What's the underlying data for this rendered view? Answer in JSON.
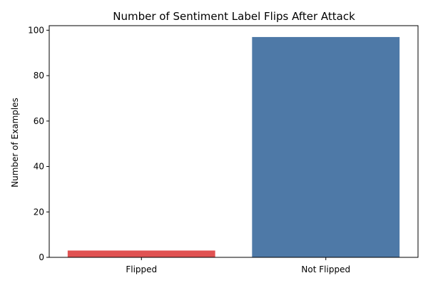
{
  "chart_data": {
    "type": "bar",
    "title": "Number of Sentiment Label Flips After Attack",
    "xlabel": "",
    "ylabel": "Number of Examples",
    "categories": [
      "Flipped",
      "Not Flipped"
    ],
    "values": [
      3,
      97
    ],
    "colors": [
      "#e05252",
      "#4e79a7"
    ],
    "ylim": [
      0,
      102
    ],
    "yticks": [
      0,
      20,
      40,
      60,
      80,
      100
    ],
    "grid": false,
    "legend": "none"
  }
}
